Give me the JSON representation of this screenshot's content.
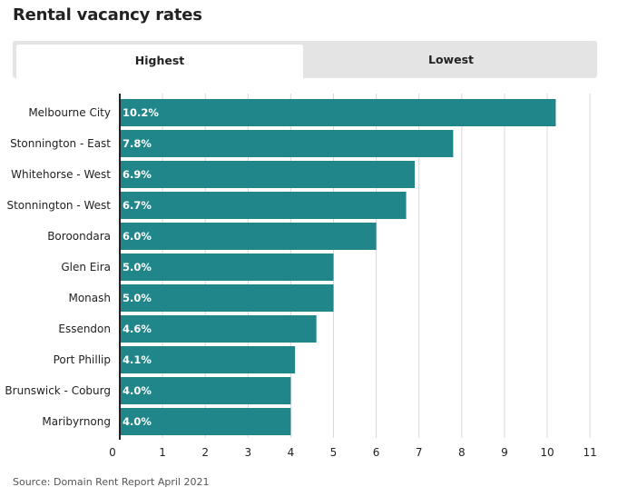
{
  "title": "Rental vacancy rates",
  "tabs": {
    "highest": "Highest",
    "lowest": "Lowest"
  },
  "source": "Source: Domain Rent Report April 2021",
  "colors": {
    "bar": "#20868a",
    "grid": "#d9d9d9",
    "axis": "#222222"
  },
  "chart_data": {
    "type": "bar",
    "orientation": "horizontal",
    "title": "Rental vacancy rates",
    "categories": [
      "Melbourne City",
      "Stonnington - East",
      "Whitehorse - West",
      "Stonnington - West",
      "Boroondara",
      "Glen Eira",
      "Monash",
      "Essendon",
      "Port Phillip",
      "Brunswick - Coburg",
      "Maribyrnong"
    ],
    "values": [
      10.2,
      7.8,
      6.9,
      6.7,
      6.0,
      5.0,
      5.0,
      4.6,
      4.1,
      4.0,
      4.0
    ],
    "data_labels": [
      "10.2%",
      "7.8%",
      "6.9%",
      "6.7%",
      "6.0%",
      "5.0%",
      "5.0%",
      "4.6%",
      "4.1%",
      "4.0%",
      "4.0%"
    ],
    "x_ticks": [
      0,
      1,
      2,
      3,
      4,
      5,
      6,
      7,
      8,
      9,
      10,
      11
    ],
    "xlim": [
      0,
      11
    ],
    "grid": true,
    "xlabel": "",
    "ylabel": ""
  }
}
